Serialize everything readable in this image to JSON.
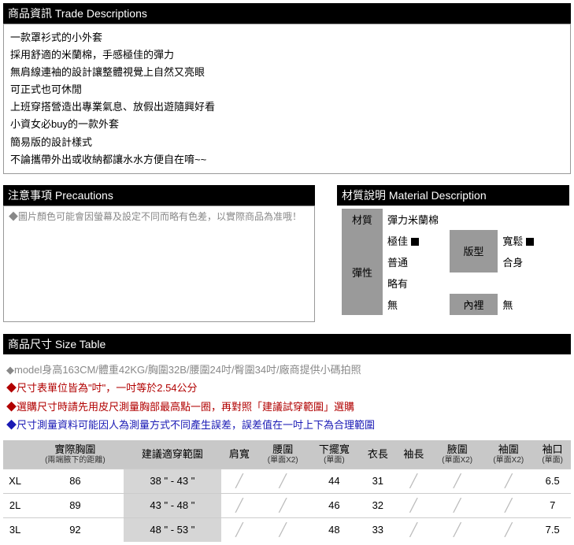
{
  "trade": {
    "header": "商品資訊 Trade Descriptions",
    "lines": [
      "一款罩衫式的小外套",
      "採用舒適的米蘭棉，手感極佳的彈力",
      "無肩線連袖的設計讓整體視覺上自然又亮眼",
      "可正式也可休閒",
      "上班穿搭營造出專業氣息、放假出遊隨興好看",
      "小資女必buy的一款外套",
      "簡易版的設計樣式",
      "不論攜帶外出或收納都讓水水方便自在唷~~"
    ]
  },
  "precautions": {
    "header": "注意事項 Precautions",
    "text": "◆圖片顏色可能會因螢幕及設定不同而略有色差，以實際商品為准哦！"
  },
  "material": {
    "header": "材質說明 Material Description",
    "rows": {
      "mat_label": "材質",
      "mat_value": "彈力米蘭棉",
      "elastic_label": "彈性",
      "elastic_opts": [
        "極佳",
        "普通",
        "略有",
        "無"
      ],
      "fit_label": "版型",
      "fit_opts": [
        "寬鬆",
        "合身"
      ],
      "lining_label": "內裡",
      "lining_value": "無"
    }
  },
  "size": {
    "header": "商品尺寸 Size Table",
    "notes": [
      {
        "cls": "note-gray",
        "t": "◆model身高163CM/體重42KG/胸圍32B/腰圍24吋/臀圍34吋/廠商提供小碼拍照"
      },
      {
        "cls": "note-red",
        "t": "◆尺寸表單位皆為\"吋\"，一吋等於2.54公分"
      },
      {
        "cls": "note-red",
        "t": "◆選購尺寸時請先用皮尺測量胸部最高點一圈，再對照「建議試穿範圍」選購"
      },
      {
        "cls": "note-blue",
        "t": "◆尺寸測量資料可能因人為測量方式不同產生誤差，誤差值在一吋上下為合理範圍"
      }
    ],
    "headers": [
      {
        "t": "",
        "s": ""
      },
      {
        "t": "實際胸圍",
        "s": "(兩端腋下的距離)"
      },
      {
        "t": "建議適穿範圍",
        "s": ""
      },
      {
        "t": "肩寬",
        "s": ""
      },
      {
        "t": "腰圍",
        "s": "(單面X2)"
      },
      {
        "t": "下擺寬",
        "s": "(單面)"
      },
      {
        "t": "衣長",
        "s": ""
      },
      {
        "t": "袖長",
        "s": ""
      },
      {
        "t": "腋圍",
        "s": "(單面X2)"
      },
      {
        "t": "袖圍",
        "s": "(單面X2)"
      },
      {
        "t": "袖口",
        "s": "(單面)"
      }
    ],
    "rows": [
      {
        "sz": "XL",
        "bust": "86",
        "rng": "38 \" - 43 \"",
        "sh": "/",
        "wa": "/",
        "hem": "44",
        "len": "31",
        "slv": "/",
        "arm": "/",
        "slc": "/",
        "cuf": "6.5"
      },
      {
        "sz": "2L",
        "bust": "89",
        "rng": "43 \" - 48 \"",
        "sh": "/",
        "wa": "/",
        "hem": "46",
        "len": "32",
        "slv": "/",
        "arm": "/",
        "slc": "/",
        "cuf": "7"
      },
      {
        "sz": "3L",
        "bust": "92",
        "rng": "48 \" - 53 \"",
        "sh": "/",
        "wa": "/",
        "hem": "48",
        "len": "33",
        "slv": "/",
        "arm": "/",
        "slc": "/",
        "cuf": "7.5"
      }
    ]
  }
}
